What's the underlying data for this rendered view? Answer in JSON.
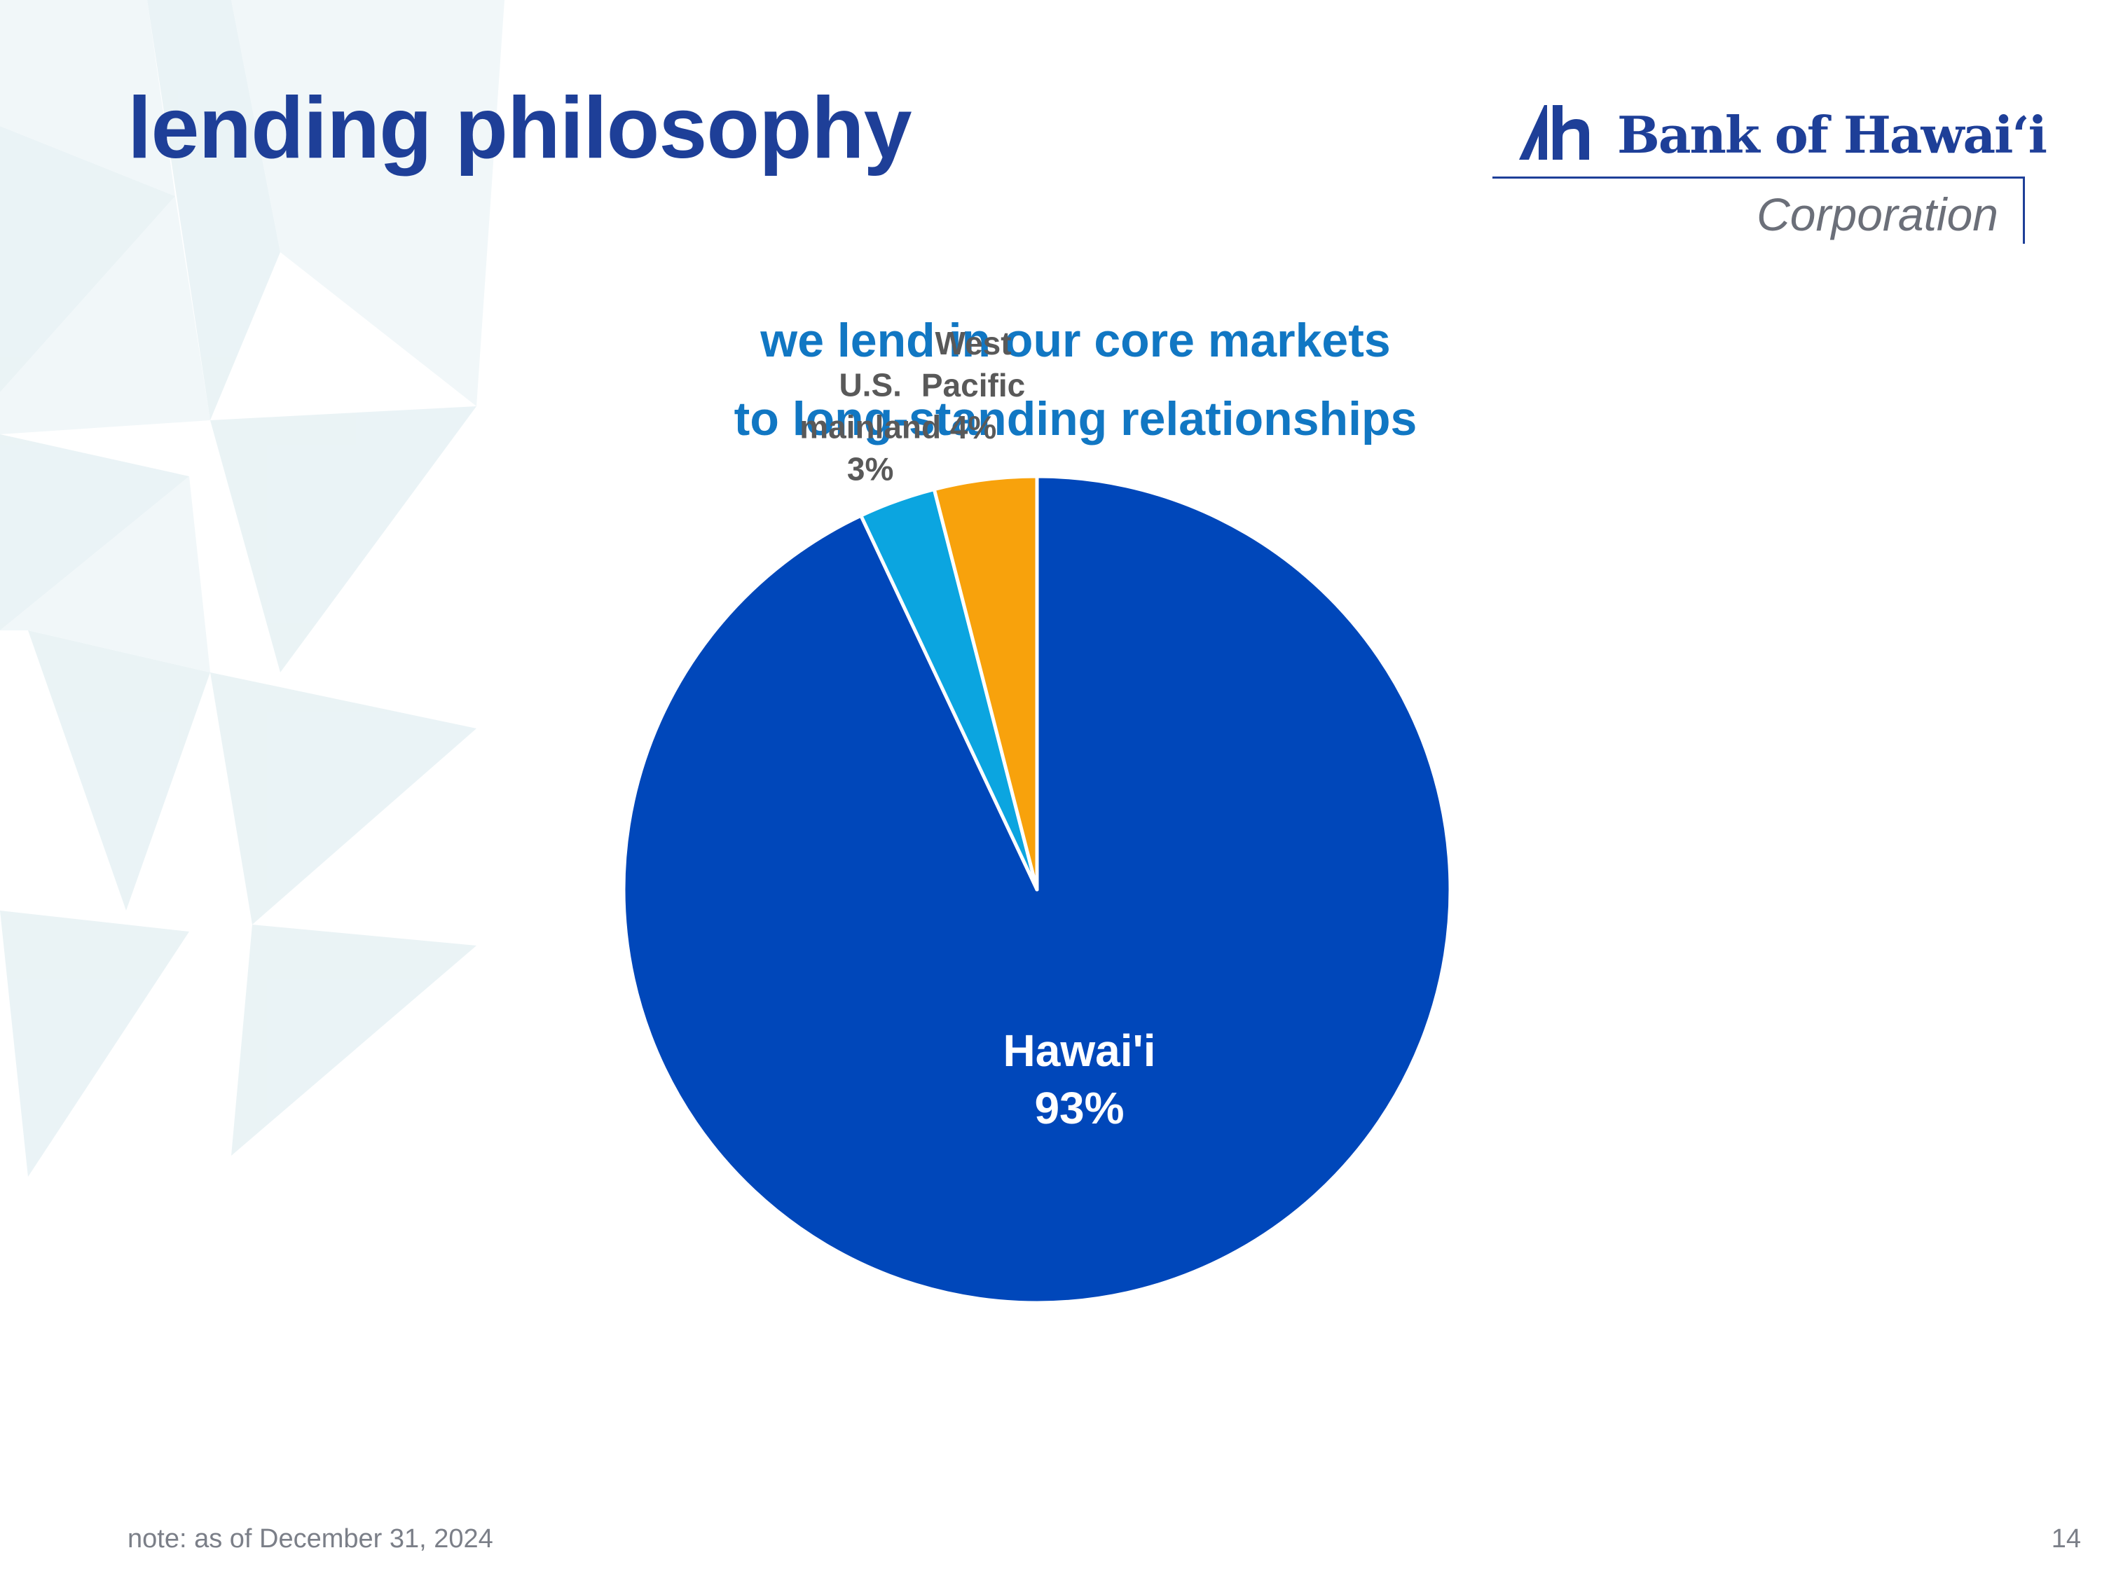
{
  "slide": {
    "title": "lending philosophy",
    "subtitle_line1": "we lend in our core markets",
    "subtitle_line2": "to long-standing relationships",
    "footnote": "note: as of December 31, 2024",
    "page_number": "14"
  },
  "logo": {
    "name": "Bank of Hawai‘i",
    "subtitle": "Corporation",
    "color": "#1e3f98"
  },
  "chart_data": {
    "type": "pie",
    "title": "",
    "slices": [
      {
        "label_lines": [
          "Hawai'i",
          "93%"
        ],
        "value": 93,
        "color": "#0047ba",
        "label_color": "#ffffff"
      },
      {
        "label_lines": [
          "U.S.",
          "mainland",
          "3%"
        ],
        "value": 3,
        "color": "#0ba5e0",
        "label_color": "#595959"
      },
      {
        "label_lines": [
          "West",
          "Pacific",
          "4%"
        ],
        "value": 4,
        "color": "#f8a20c",
        "label_color": "#595959"
      }
    ],
    "start_angle_deg": 0,
    "direction": "clockwise",
    "legend": "none"
  }
}
